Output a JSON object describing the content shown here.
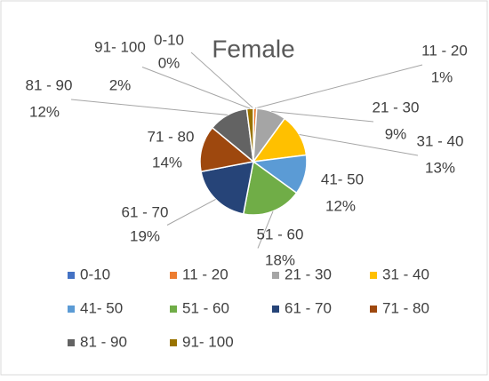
{
  "chart_data": {
    "type": "pie",
    "title": "Female",
    "categories": [
      "0-10",
      "11 - 20",
      "21 - 30",
      "31 - 40",
      "41- 50",
      "51 - 60",
      "61  - 70",
      "71 - 80",
      "81 - 90",
      "91- 100"
    ],
    "values": [
      0,
      1,
      9,
      13,
      12,
      18,
      19,
      14,
      12,
      2
    ],
    "value_labels": [
      "0%",
      "1%",
      "9%",
      "13%",
      "12%",
      "18%",
      "19%",
      "14%",
      "12%",
      "2%"
    ],
    "colors": [
      "#4472c4",
      "#ed7d31",
      "#a5a5a5",
      "#ffc000",
      "#5b9bd5",
      "#70ad47",
      "#264478",
      "#9e480e",
      "#636363",
      "#997300"
    ],
    "legend": "bottom"
  }
}
